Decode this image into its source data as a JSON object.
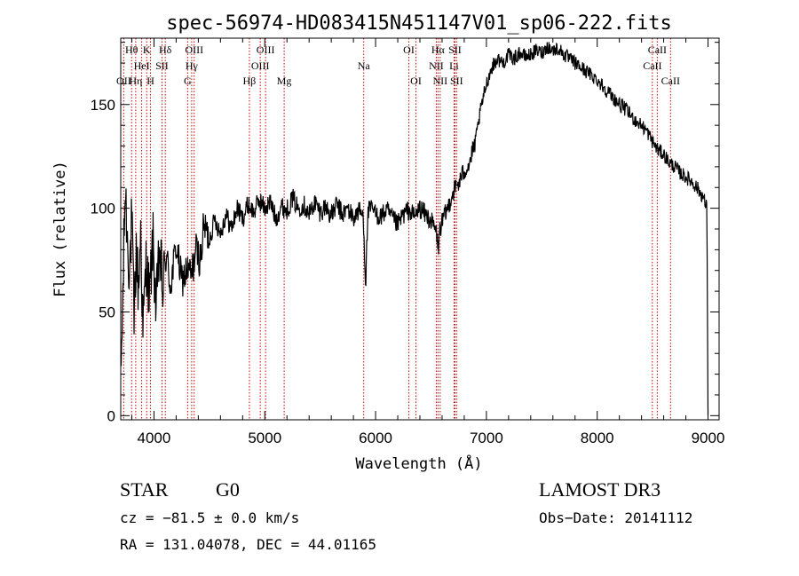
{
  "chart_data": {
    "type": "line",
    "title": "spec-56974-HD083415N451147V01_sp06-222.fits",
    "xlabel": "Wavelength (Å)",
    "ylabel": "Flux (relative)",
    "xlim": [
      3700,
      9100
    ],
    "ylim": [
      -2,
      182
    ],
    "x_ticks": [
      4000,
      5000,
      6000,
      7000,
      8000,
      9000
    ],
    "y_ticks": [
      0,
      50,
      100,
      150
    ],
    "grid": false,
    "series": [
      {
        "x": [
          3700,
          3720,
          3740,
          3760,
          3780,
          3800,
          3820,
          3840,
          3860,
          3880,
          3900,
          3930,
          3960,
          3990,
          4020,
          4050,
          4080,
          4110,
          4150,
          4200,
          4250,
          4300,
          4340,
          4380,
          4420,
          4450,
          4500,
          4550,
          4600,
          4650,
          4700,
          4750,
          4800,
          4850,
          4900,
          4950,
          5000,
          5050,
          5100,
          5150,
          5200,
          5250,
          5300,
          5350,
          5400,
          5450,
          5500,
          5550,
          5600,
          5650,
          5700,
          5750,
          5800,
          5850,
          5890,
          5910,
          5930,
          5970,
          6000,
          6050,
          6100,
          6150,
          6200,
          6250,
          6300,
          6350,
          6400,
          6450,
          6500,
          6550,
          6565,
          6580,
          6600,
          6650,
          6700,
          6750,
          6800,
          6850,
          6900,
          6950,
          7000,
          7050,
          7100,
          7150,
          7200,
          7250,
          7300,
          7350,
          7400,
          7450,
          7500,
          7550,
          7600,
          7650,
          7700,
          7750,
          7800,
          7850,
          7900,
          7950,
          8000,
          8050,
          8100,
          8150,
          8200,
          8250,
          8300,
          8350,
          8400,
          8450,
          8500,
          8550,
          8600,
          8650,
          8700,
          8750,
          8800,
          8850,
          8900,
          8950,
          8990,
          9000
        ],
        "y": [
          15,
          60,
          110,
          85,
          70,
          95,
          45,
          80,
          60,
          90,
          40,
          75,
          55,
          85,
          50,
          80,
          60,
          78,
          62,
          82,
          65,
          70,
          68,
          80,
          75,
          92,
          85,
          95,
          88,
          97,
          90,
          100,
          95,
          102,
          98,
          104,
          100,
          103,
          95,
          101,
          99,
          105,
          100,
          102,
          97,
          103,
          98,
          101,
          96,
          102,
          97,
          100,
          95,
          99,
          96,
          63,
          98,
          100,
          97,
          96,
          99,
          95,
          92,
          97,
          99,
          96,
          100,
          97,
          94,
          88,
          80,
          90,
          93,
          100,
          108,
          112,
          118,
          122,
          132,
          148,
          160,
          168,
          172,
          170,
          174,
          172,
          175,
          173,
          174,
          176,
          175,
          178,
          176,
          177,
          174,
          172,
          170,
          168,
          166,
          164,
          162,
          159,
          156,
          153,
          150,
          148,
          145,
          142,
          140,
          137,
          132,
          128,
          126,
          122,
          120,
          117,
          115,
          113,
          110,
          106,
          100,
          0
        ]
      }
    ],
    "lines": [
      {
        "name": "OII",
        "x": 3727,
        "row": 2
      },
      {
        "name": "Hθ",
        "x": 3798,
        "row": 0
      },
      {
        "name": "Hη",
        "x": 3835,
        "row": 2
      },
      {
        "name": "HeI",
        "x": 3889,
        "row": 1
      },
      {
        "name": "K",
        "x": 3934,
        "row": 0
      },
      {
        "name": "H",
        "x": 3969,
        "row": 2
      },
      {
        "name": "SII",
        "x": 4072,
        "row": 1
      },
      {
        "name": "Hδ",
        "x": 4102,
        "row": 0
      },
      {
        "name": "G",
        "x": 4304,
        "row": 2
      },
      {
        "name": "Hγ",
        "x": 4340,
        "row": 1
      },
      {
        "name": "OIII",
        "x": 4363,
        "row": 0
      },
      {
        "name": "Hβ",
        "x": 4861,
        "row": 2
      },
      {
        "name": "OIII",
        "x": 4959,
        "row": 1
      },
      {
        "name": "OIII",
        "x": 5007,
        "row": 0
      },
      {
        "name": "Mg",
        "x": 5175,
        "row": 2
      },
      {
        "name": "Na",
        "x": 5893,
        "row": 1
      },
      {
        "name": "OI",
        "x": 6300,
        "row": 0
      },
      {
        "name": "OI",
        "x": 6364,
        "row": 2
      },
      {
        "name": "NII",
        "x": 6548,
        "row": 1
      },
      {
        "name": "Hα",
        "x": 6563,
        "row": 0
      },
      {
        "name": "NII",
        "x": 6583,
        "row": 2
      },
      {
        "name": "Li",
        "x": 6708,
        "row": 1
      },
      {
        "name": "SII",
        "x": 6716,
        "row": 0
      },
      {
        "name": "SII",
        "x": 6731,
        "row": 2
      },
      {
        "name": "CaII",
        "x": 8498,
        "row": 1
      },
      {
        "name": "CaII",
        "x": 8542,
        "row": 0
      },
      {
        "name": "CaII",
        "x": 8662,
        "row": 2
      }
    ],
    "line_color": "#cc0000"
  },
  "info": {
    "class_label": "STAR",
    "subclass_label": "G0",
    "survey": "LAMOST DR3",
    "cz": "cz = −81.5 ± 0.0 km/s",
    "obs_date": "Obs−Date: 20141112",
    "coords": "RA = 131.04078, DEC =  44.01165"
  }
}
